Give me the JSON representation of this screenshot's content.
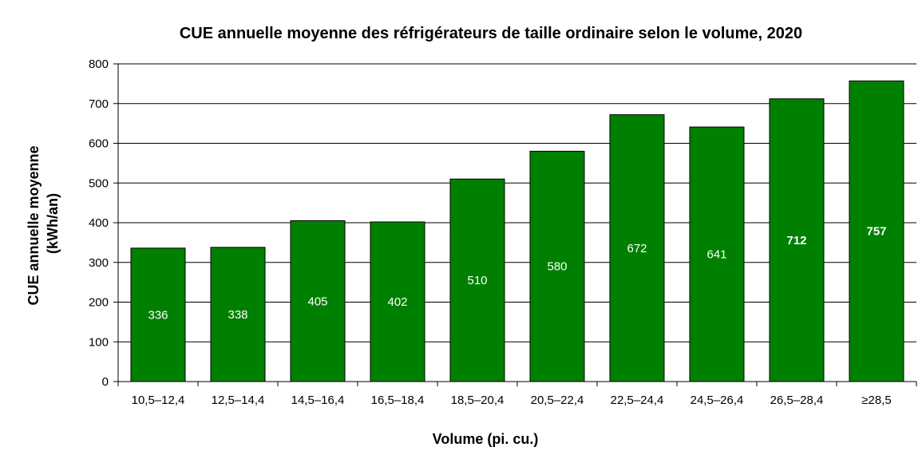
{
  "chart_data": {
    "type": "bar",
    "title": "CUE annuelle moyenne des réfrigérateurs de taille ordinaire selon le volume, 2020",
    "xlabel": "Volume (pi. cu.)",
    "ylabel_line1": "CUE annuelle moyenne",
    "ylabel_line2": "(kWh/an)",
    "categories": [
      "10,5–12,4",
      "12,5–14,4",
      "14,5–16,4",
      "16,5–18,4",
      "18,5–20,4",
      "20,5–22,4",
      "22,5–24,4",
      "24,5–26,4",
      "26,5–28,4",
      "≥28,5"
    ],
    "values": [
      336,
      338,
      405,
      402,
      510,
      580,
      672,
      641,
      712,
      757
    ],
    "bold_labels": [
      false,
      false,
      false,
      false,
      false,
      false,
      false,
      false,
      true,
      true
    ],
    "ylim": [
      0,
      800
    ],
    "yticks": [
      0,
      100,
      200,
      300,
      400,
      500,
      600,
      700,
      800
    ],
    "grid": true,
    "bar_color": "#008000",
    "label_color": "#ffffff"
  }
}
